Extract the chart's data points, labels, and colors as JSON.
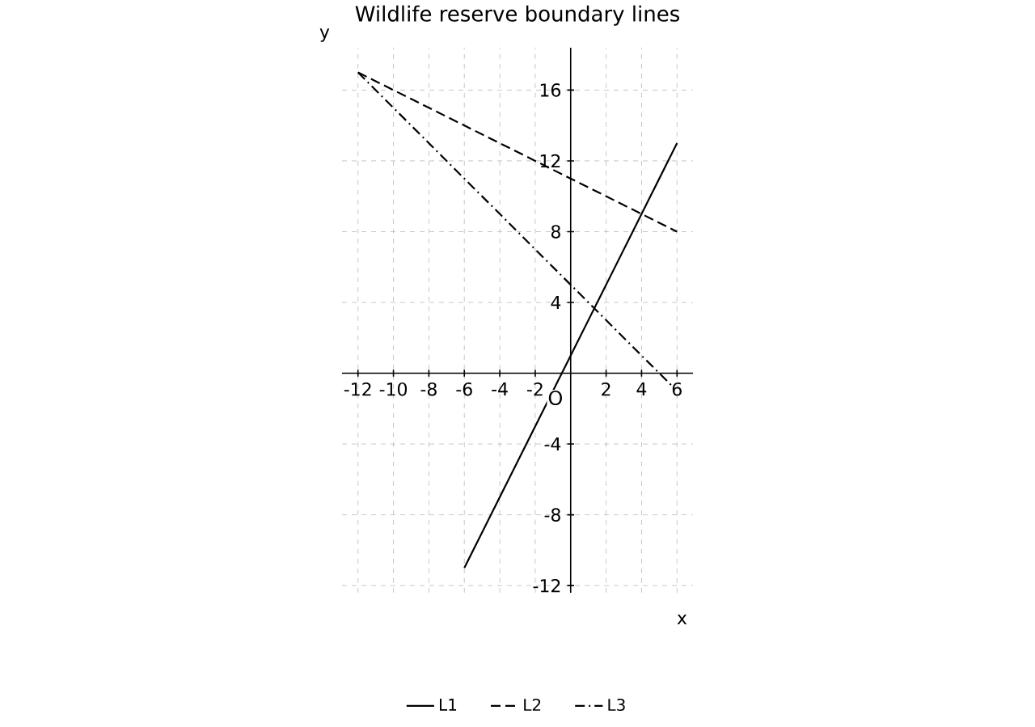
{
  "chart_data": {
    "type": "line",
    "title": "Wildlife reserve boundary lines",
    "xlabel": "x",
    "ylabel": "y",
    "annotations": [
      "O"
    ],
    "series": [
      {
        "name": "L1",
        "color": "#000000",
        "line_style": "solid",
        "x": [
          -6,
          6
        ],
        "values": [
          -11,
          13
        ]
      },
      {
        "name": "L2",
        "color": "#000000",
        "line_style": "dashed",
        "x": [
          -12,
          6
        ],
        "values": [
          17,
          8
        ]
      },
      {
        "name": "L3",
        "color": "#000000",
        "line_style": "dashdot",
        "x": [
          -12,
          5.8
        ],
        "values": [
          17,
          -0.8
        ]
      }
    ],
    "xlim": [
      -12.9,
      6.9
    ],
    "ylim": [
      -12.4,
      18.4
    ],
    "xticks": [
      -12,
      -10,
      -8,
      -6,
      -4,
      -2,
      2,
      4,
      6
    ],
    "yticks": [
      -12,
      -8,
      -4,
      4,
      8,
      12,
      16
    ],
    "grid": true,
    "legend": "bottom",
    "marker": "none"
  }
}
